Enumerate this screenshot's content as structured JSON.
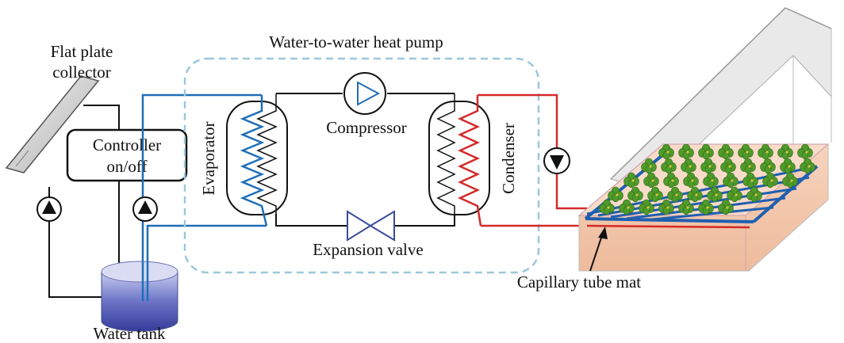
{
  "labels": {
    "flat_plate_collector_line1": "Flat plate",
    "flat_plate_collector_line2": "collector",
    "heat_pump_title": "Water-to-water heat pump",
    "controller_line1": "Controller",
    "controller_line2": "on/off",
    "evaporator": "Evaporator",
    "compressor": "Compressor",
    "condenser": "Condenser",
    "expansion_valve": "Expansion valve",
    "water_tank": "Water tank",
    "capillary_tube_mat": "Capillary tube mat"
  },
  "colors": {
    "cold_loop": "#1f6fb8",
    "hot_loop": "#d42a2a",
    "refrigerant_line": "#111111",
    "heat_pump_boundary": "#9cc8d8",
    "greenhouse_soil": "#f4cbb0",
    "tank_water": "#5a63b8",
    "plants": "#4e9a2a"
  },
  "icons": {
    "pumps": "pump-icon",
    "compressor": "compressor-icon",
    "expansion_valve": "valve-icon",
    "greenhouse": "greenhouse-icon"
  }
}
